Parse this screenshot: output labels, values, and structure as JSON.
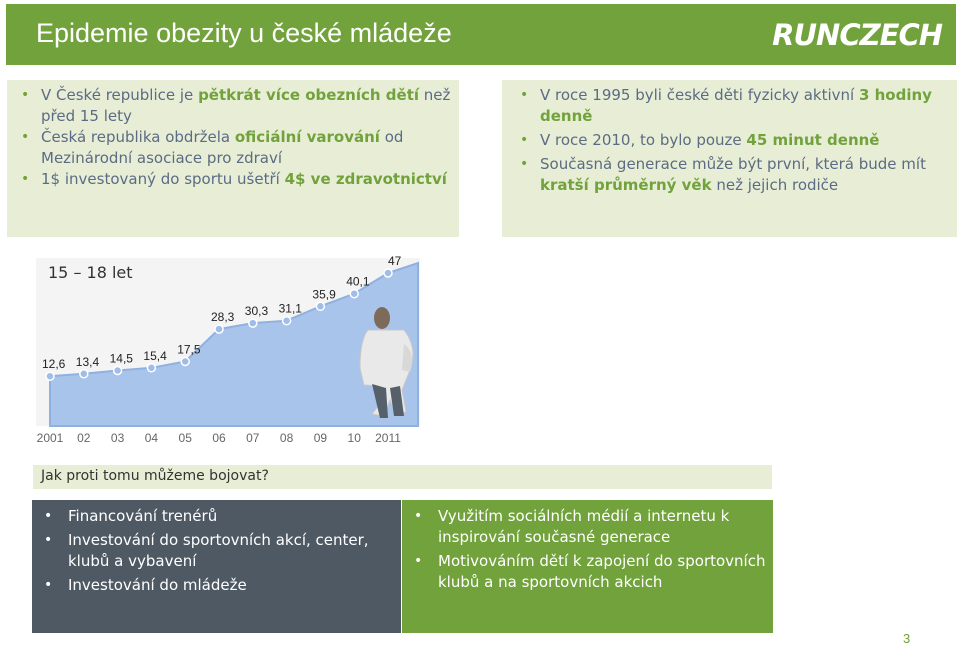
{
  "header": {
    "title": "Epidemie obezity u české mládeže",
    "logo": "RUNCZECH"
  },
  "left_panel": {
    "items": [
      {
        "pre": "V České republice je ",
        "bold": "pětkrát více obezních dětí",
        "post": " než před 15 lety"
      },
      {
        "pre": "Česká republika obdržela ",
        "bold": "oficiální varování",
        "post": " od Mezinárodní asociace pro zdraví"
      },
      {
        "pre": "1$ investovaný  do sportu ušetří ",
        "bold": "4$ ve zdravotnictví",
        "post": ""
      }
    ]
  },
  "right_panel": {
    "items": [
      {
        "pre": "V roce 1995 byli české děti fyzicky aktivní ",
        "bold": "3 hodiny denně",
        "post": ""
      },
      {
        "pre": "V roce 2010, to bylo pouze ",
        "bold": "45 minut denně",
        "post": ""
      },
      {
        "pre": "Současná generace může být první, která bude mít ",
        "bold": "kratší průměrný věk",
        "post": " než jejich rodiče"
      }
    ]
  },
  "chart_data": {
    "type": "area",
    "title": "15 – 18 let",
    "categories": [
      "2001",
      "02",
      "03",
      "04",
      "05",
      "06",
      "07",
      "08",
      "09",
      "10",
      "2011"
    ],
    "values": [
      12.6,
      13.4,
      14.5,
      15.4,
      17.5,
      28.3,
      30.3,
      31.1,
      35.9,
      40.1,
      47
    ],
    "labels": [
      "12,6",
      "13,4",
      "14,5",
      "15,4",
      "17,5",
      "28,3",
      "30,3",
      "31,1",
      "35,9",
      "40,1",
      "47"
    ],
    "ylim": [
      0,
      50
    ],
    "colors": {
      "fill": "#a9c4ea",
      "line": "#8fb1e0",
      "point": "#9fbde8"
    }
  },
  "question": "Jak proti tomu můžeme bojovat?",
  "box_dark": {
    "items": [
      "Financování trenérů",
      "Investování do sportovních akcí, center, klubů a vybavení",
      "Investování do mládeže"
    ]
  },
  "box_green": {
    "items": [
      "Využitím sociálních médií a internetu k inspirování současné generace",
      "Motivováním dětí k zapojení do sportovních klubů a na sportovních akcich"
    ]
  },
  "page_number": "3"
}
